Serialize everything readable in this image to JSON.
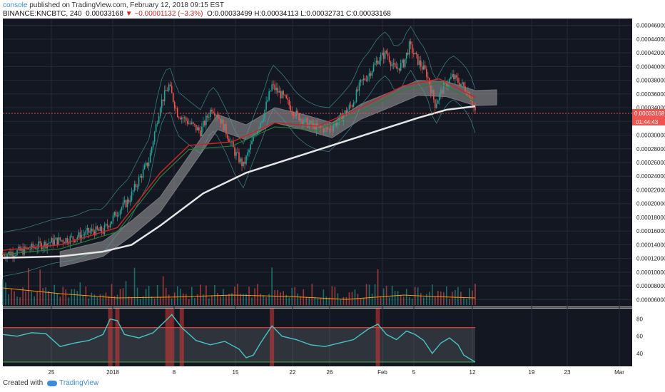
{
  "header": {
    "publisher": "console",
    "published_text": "published on TradingView.com, February 12, 2018 09:15 EST",
    "symbol": "BINANCE:KNCBTC, 240",
    "last": "0.00033168",
    "change": "−0.00001132 (−3.3%)",
    "ohlc": "O:0.00033499 H:0.00034113 L:0.00032731 C:0.00033168"
  },
  "footer": {
    "created_with": "Created with",
    "brand": "TradingView"
  },
  "price_scale": {
    "last_label": "0.00033168",
    "countdown": "01:44:43"
  },
  "colors": {
    "up": "#26a69a",
    "down": "#ef5350",
    "bg": "#131722",
    "grid": "#262a36",
    "ma200": "#e6e6e6",
    "rsi": "#49c4c4"
  },
  "chart_data": [
    {
      "type": "candlestick",
      "title": "BINANCE:KNCBTC, 240",
      "xlabels": [
        "25",
        "2018",
        "8",
        "15",
        "22",
        "26",
        "Feb",
        "5",
        "12",
        "19",
        "23",
        "Mar"
      ],
      "ylabels": [
        "0.00046000",
        "0.00044000",
        "0.00042000",
        "0.00040000",
        "0.00038000",
        "0.00036000",
        "0.00034000",
        "0.00032000",
        "0.00030000",
        "0.00028000",
        "0.00026000",
        "0.00024000",
        "0.00022000",
        "0.00020000",
        "0.00018000",
        "0.00016000",
        "0.00014000",
        "0.00012000",
        "0.00010000",
        "0.00008000",
        "0.00006000"
      ],
      "ylim": [
        5e-05,
        0.00047
      ],
      "close_path": [
        [
          0,
          0.000126
        ],
        [
          15,
          0.000132
        ],
        [
          35,
          0.000145
        ],
        [
          50,
          0.00015
        ],
        [
          62,
          0.00016
        ],
        [
          70,
          0.00016
        ],
        [
          80,
          0.000188
        ],
        [
          88,
          0.000205
        ],
        [
          95,
          0.000235
        ],
        [
          102,
          0.000262
        ],
        [
          110,
          0.000345
        ],
        [
          116,
          0.000372
        ],
        [
          122,
          0.000332
        ],
        [
          130,
          0.000318
        ],
        [
          138,
          0.000305
        ],
        [
          146,
          0.00034
        ],
        [
          150,
          0.00033
        ],
        [
          156,
          0.000305
        ],
        [
          162,
          0.000275
        ],
        [
          168,
          0.000255
        ],
        [
          176,
          0.0003
        ],
        [
          182,
          0.00033
        ],
        [
          188,
          0.000372
        ],
        [
          196,
          0.000355
        ],
        [
          205,
          0.00033
        ],
        [
          212,
          0.000318
        ],
        [
          220,
          0.00031
        ],
        [
          228,
          0.000308
        ],
        [
          236,
          0.000325
        ],
        [
          244,
          0.000345
        ],
        [
          250,
          0.000375
        ],
        [
          256,
          0.00039
        ],
        [
          262,
          0.00041
        ],
        [
          268,
          0.00042
        ],
        [
          274,
          0.000395
        ],
        [
          280,
          0.000405
        ],
        [
          284,
          0.00043
        ],
        [
          290,
          0.000408
        ],
        [
          296,
          0.00039
        ],
        [
          302,
          0.000345
        ],
        [
          308,
          0.00037
        ],
        [
          314,
          0.000385
        ],
        [
          320,
          0.000375
        ],
        [
          326,
          0.00036
        ],
        [
          330,
          0.000335
        ]
      ],
      "ma200_path": [
        [
          0,
          0.000121
        ],
        [
          40,
          0.000123
        ],
        [
          70,
          0.00013
        ],
        [
          90,
          0.00014
        ],
        [
          110,
          0.000168
        ],
        [
          140,
          0.000215
        ],
        [
          170,
          0.000245
        ],
        [
          200,
          0.000265
        ],
        [
          230,
          0.000285
        ],
        [
          260,
          0.000305
        ],
        [
          290,
          0.000325
        ],
        [
          310,
          0.000337
        ],
        [
          330,
          0.000342
        ]
      ],
      "ma_fast_path": [
        [
          0,
          0.000132
        ],
        [
          40,
          0.00014
        ],
        [
          80,
          0.000165
        ],
        [
          110,
          0.000245
        ],
        [
          130,
          0.000285
        ],
        [
          160,
          0.00029
        ],
        [
          190,
          0.000318
        ],
        [
          220,
          0.000313
        ],
        [
          250,
          0.00034
        ],
        [
          280,
          0.000372
        ],
        [
          305,
          0.000382
        ],
        [
          330,
          0.000355
        ]
      ],
      "cloud_path": [
        [
          40,
          0.00013
        ],
        [
          70,
          0.000145
        ],
        [
          90,
          0.000175
        ],
        [
          110,
          0.00021
        ],
        [
          130,
          0.00027
        ],
        [
          150,
          0.00033
        ],
        [
          170,
          0.000315
        ],
        [
          190,
          0.00034
        ],
        [
          210,
          0.00033
        ],
        [
          230,
          0.000318
        ],
        [
          250,
          0.000345
        ],
        [
          270,
          0.000362
        ],
        [
          290,
          0.00038
        ],
        [
          310,
          0.000378
        ],
        [
          330,
          0.000365
        ],
        [
          345,
          0.000366
        ]
      ],
      "price_last": 0.00033168,
      "series": [
        {
          "name": "KNCBTC",
          "values": []
        }
      ]
    },
    {
      "type": "bar",
      "title": "",
      "volume_ma_path": [
        [
          0,
          0.6
        ],
        [
          40,
          0.4
        ],
        [
          80,
          0.25
        ],
        [
          120,
          0.28
        ],
        [
          160,
          0.35
        ],
        [
          200,
          0.3
        ],
        [
          240,
          0.2
        ],
        [
          280,
          0.35
        ],
        [
          300,
          0.3
        ],
        [
          330,
          0.25
        ]
      ]
    },
    {
      "type": "line",
      "title": "",
      "ylabels": [
        "80",
        "60",
        "40"
      ],
      "ylim": [
        25,
        92
      ],
      "bands": [
        30,
        70
      ],
      "rsi_path": [
        [
          0,
          62
        ],
        [
          10,
          60
        ],
        [
          20,
          64
        ],
        [
          30,
          63
        ],
        [
          40,
          48
        ],
        [
          50,
          52
        ],
        [
          60,
          55
        ],
        [
          70,
          62
        ],
        [
          75,
          80
        ],
        [
          80,
          78
        ],
        [
          85,
          62
        ],
        [
          95,
          58
        ],
        [
          105,
          64
        ],
        [
          115,
          80
        ],
        [
          118,
          85
        ],
        [
          125,
          70
        ],
        [
          135,
          55
        ],
        [
          145,
          50
        ],
        [
          155,
          54
        ],
        [
          165,
          45
        ],
        [
          170,
          35
        ],
        [
          175,
          38
        ],
        [
          180,
          52
        ],
        [
          188,
          72
        ],
        [
          195,
          60
        ],
        [
          205,
          56
        ],
        [
          215,
          50
        ],
        [
          225,
          48
        ],
        [
          235,
          52
        ],
        [
          245,
          56
        ],
        [
          255,
          68
        ],
        [
          262,
          74
        ],
        [
          268,
          62
        ],
        [
          275,
          56
        ],
        [
          282,
          66
        ],
        [
          288,
          62
        ],
        [
          294,
          55
        ],
        [
          300,
          40
        ],
        [
          306,
          52
        ],
        [
          312,
          58
        ],
        [
          318,
          50
        ],
        [
          322,
          38
        ],
        [
          326,
          34
        ],
        [
          330,
          30
        ]
      ]
    }
  ]
}
